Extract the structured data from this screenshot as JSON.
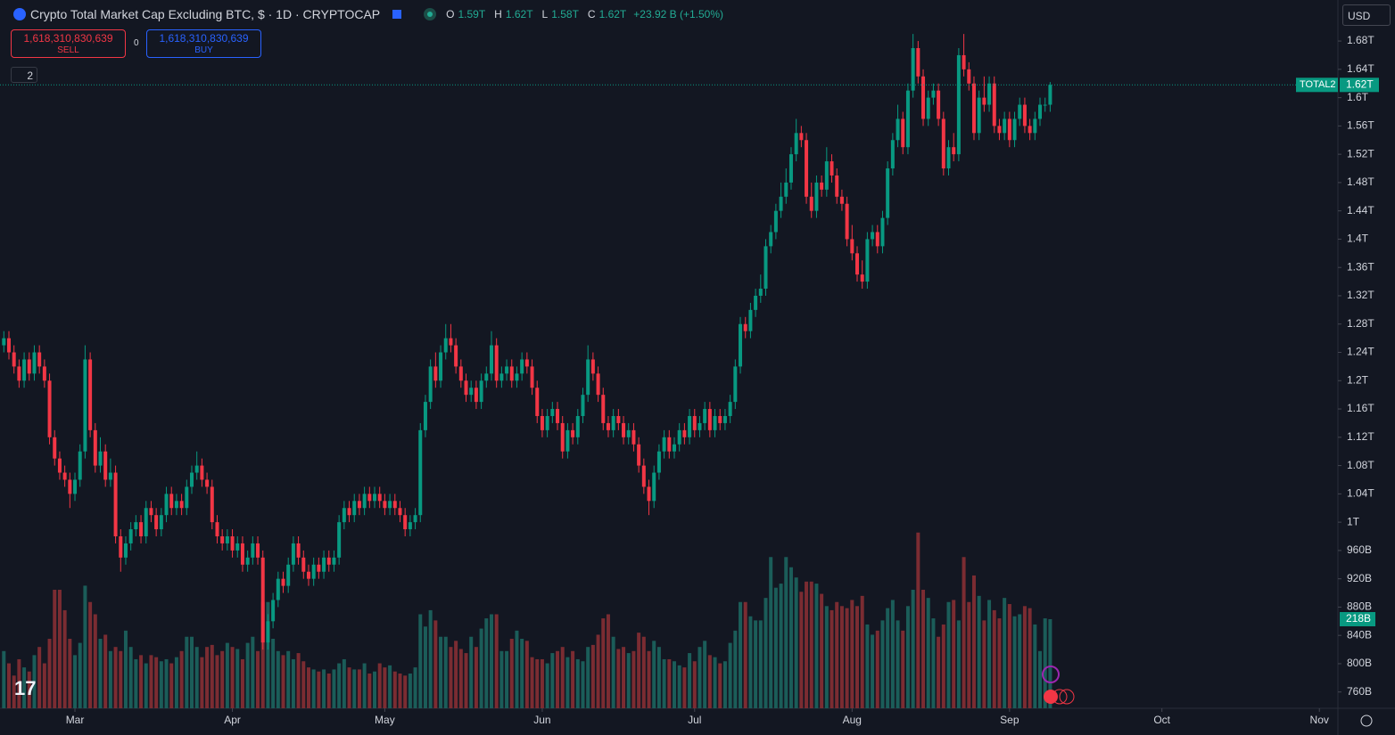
{
  "header": {
    "title": "Crypto Total Market Cap Excluding BTC, $ · 1D · CRYPTOCAP",
    "open_label": "O",
    "open": "1.59T",
    "high_label": "H",
    "high": "1.62T",
    "low_label": "L",
    "low": "1.58T",
    "close_label": "C",
    "close": "1.62T",
    "change": "+23.92 B (+1.50%)"
  },
  "trade": {
    "sell_price": "1,618,310,830,639",
    "sell_label": "SELL",
    "spread": "0",
    "buy_price": "1,618,310,830,639",
    "buy_label": "BUY"
  },
  "indicators_count": "2",
  "currency": "USD",
  "chart_data": {
    "type": "candlestick",
    "x": [
      0,
      1,
      2,
      3,
      4,
      5,
      6,
      7,
      8,
      9,
      10,
      11,
      12,
      13,
      14,
      15,
      16,
      17,
      18,
      19,
      20,
      21,
      22,
      23,
      24,
      25,
      26,
      27,
      28,
      29,
      30,
      31,
      32,
      33,
      34,
      35,
      36,
      37,
      38,
      39,
      40,
      41,
      42,
      43,
      44,
      45,
      46,
      47,
      48,
      49,
      50,
      51,
      52,
      53,
      54,
      55,
      56,
      57,
      58,
      59,
      60,
      61,
      62,
      63,
      64,
      65,
      66,
      67,
      68,
      69,
      70,
      71,
      72,
      73,
      74,
      75,
      76,
      77,
      78,
      79,
      80,
      81,
      82,
      83,
      84,
      85,
      86,
      87,
      88,
      89,
      90,
      91,
      92,
      93,
      94,
      95,
      96,
      97,
      98,
      99,
      100,
      101,
      102,
      103,
      104,
      105,
      106,
      107,
      108,
      109,
      110,
      111,
      112,
      113,
      114,
      115,
      116,
      117,
      118,
      119,
      120,
      121,
      122,
      123,
      124,
      125,
      126,
      127,
      128,
      129,
      130,
      131,
      132,
      133,
      134,
      135,
      136,
      137,
      138,
      139,
      140,
      141,
      142,
      143,
      144,
      145,
      146,
      147,
      148,
      149,
      150,
      151,
      152,
      153,
      154,
      155,
      156,
      157,
      158,
      159,
      160,
      161,
      162,
      163,
      164,
      165,
      166,
      167,
      168,
      169,
      170,
      171,
      172,
      173,
      174,
      175,
      176,
      177,
      178,
      179,
      180,
      181,
      182,
      183,
      184,
      185,
      186,
      187,
      188,
      189,
      190,
      191,
      192,
      193,
      194,
      195,
      196,
      197,
      198,
      199,
      200,
      201,
      202,
      203,
      204,
      205,
      206
    ],
    "open": [
      1.25,
      1.26,
      1.24,
      1.22,
      1.2,
      1.23,
      1.21,
      1.24,
      1.22,
      1.2,
      1.12,
      1.09,
      1.07,
      1.06,
      1.04,
      1.06,
      1.1,
      1.23,
      1.13,
      1.08,
      1.1,
      1.06,
      1.07,
      0.98,
      0.95,
      0.97,
      0.99,
      1.0,
      0.98,
      1.02,
      1.01,
      0.99,
      1.01,
      1.04,
      1.02,
      1.03,
      1.02,
      1.05,
      1.07,
      1.08,
      1.06,
      1.05,
      1.0,
      0.98,
      0.97,
      0.98,
      0.96,
      0.97,
      0.94,
      0.95,
      0.97,
      0.95,
      0.83,
      0.86,
      0.89,
      0.92,
      0.91,
      0.94,
      0.97,
      0.95,
      0.93,
      0.92,
      0.94,
      0.93,
      0.95,
      0.94,
      0.95,
      1.0,
      1.02,
      1.01,
      1.03,
      1.02,
      1.04,
      1.03,
      1.04,
      1.03,
      1.02,
      1.03,
      1.02,
      1.01,
      0.99,
      1.0,
      1.01,
      1.13,
      1.17,
      1.22,
      1.2,
      1.24,
      1.26,
      1.25,
      1.22,
      1.2,
      1.18,
      1.19,
      1.17,
      1.2,
      1.21,
      1.25,
      1.2,
      1.21,
      1.22,
      1.2,
      1.21,
      1.23,
      1.22,
      1.19,
      1.15,
      1.13,
      1.15,
      1.16,
      1.14,
      1.1,
      1.13,
      1.12,
      1.15,
      1.18,
      1.23,
      1.21,
      1.18,
      1.14,
      1.13,
      1.15,
      1.14,
      1.12,
      1.13,
      1.11,
      1.08,
      1.05,
      1.03,
      1.07,
      1.1,
      1.12,
      1.1,
      1.11,
      1.13,
      1.12,
      1.15,
      1.13,
      1.14,
      1.16,
      1.13,
      1.15,
      1.14,
      1.15,
      1.17,
      1.22,
      1.28,
      1.27,
      1.3,
      1.32,
      1.33,
      1.39,
      1.41,
      1.44,
      1.46,
      1.48,
      1.52,
      1.55,
      1.54,
      1.46,
      1.44,
      1.48,
      1.47,
      1.51,
      1.49,
      1.46,
      1.45,
      1.4,
      1.38,
      1.35,
      1.34,
      1.4,
      1.41,
      1.39,
      1.43,
      1.5,
      1.54,
      1.57,
      1.53,
      1.61,
      1.67,
      1.63,
      1.57,
      1.6,
      1.61,
      1.57,
      1.5,
      1.53,
      1.52,
      1.66,
      1.64,
      1.62,
      1.55,
      1.6,
      1.59,
      1.62,
      1.56,
      1.55,
      1.57,
      1.54,
      1.57,
      1.59,
      1.56,
      1.55,
      1.57,
      1.59,
      1.59
    ],
    "high": [
      1.27,
      1.27,
      1.25,
      1.23,
      1.24,
      1.24,
      1.25,
      1.25,
      1.23,
      1.21,
      1.13,
      1.1,
      1.08,
      1.07,
      1.07,
      1.11,
      1.25,
      1.24,
      1.14,
      1.12,
      1.11,
      1.09,
      1.08,
      0.99,
      0.98,
      1.0,
      1.01,
      1.01,
      1.03,
      1.03,
      1.02,
      1.02,
      1.05,
      1.05,
      1.04,
      1.04,
      1.06,
      1.08,
      1.1,
      1.09,
      1.07,
      1.06,
      1.01,
      0.99,
      0.99,
      0.99,
      0.98,
      0.98,
      0.96,
      0.98,
      0.98,
      0.96,
      0.87,
      0.9,
      0.93,
      0.93,
      0.95,
      0.98,
      0.98,
      0.96,
      0.94,
      0.95,
      0.95,
      0.96,
      0.96,
      0.96,
      1.01,
      1.03,
      1.03,
      1.04,
      1.04,
      1.05,
      1.05,
      1.05,
      1.05,
      1.04,
      1.04,
      1.04,
      1.03,
      1.02,
      1.01,
      1.02,
      1.14,
      1.18,
      1.23,
      1.24,
      1.25,
      1.28,
      1.28,
      1.26,
      1.23,
      1.21,
      1.2,
      1.2,
      1.21,
      1.22,
      1.27,
      1.26,
      1.22,
      1.23,
      1.23,
      1.22,
      1.24,
      1.24,
      1.23,
      1.2,
      1.16,
      1.16,
      1.17,
      1.17,
      1.15,
      1.14,
      1.14,
      1.16,
      1.19,
      1.25,
      1.24,
      1.22,
      1.19,
      1.15,
      1.16,
      1.16,
      1.15,
      1.14,
      1.14,
      1.12,
      1.09,
      1.06,
      1.08,
      1.11,
      1.13,
      1.13,
      1.12,
      1.14,
      1.14,
      1.16,
      1.16,
      1.15,
      1.17,
      1.17,
      1.16,
      1.16,
      1.16,
      1.18,
      1.23,
      1.29,
      1.29,
      1.31,
      1.33,
      1.35,
      1.4,
      1.42,
      1.45,
      1.48,
      1.5,
      1.53,
      1.57,
      1.56,
      1.55,
      1.48,
      1.49,
      1.49,
      1.53,
      1.52,
      1.5,
      1.47,
      1.46,
      1.42,
      1.39,
      1.37,
      1.41,
      1.42,
      1.42,
      1.44,
      1.51,
      1.55,
      1.59,
      1.58,
      1.62,
      1.69,
      1.68,
      1.64,
      1.61,
      1.62,
      1.62,
      1.58,
      1.54,
      1.55,
      1.67,
      1.69,
      1.65,
      1.63,
      1.61,
      1.63,
      1.63,
      1.63,
      1.57,
      1.58,
      1.58,
      1.58,
      1.6,
      1.6,
      1.57,
      1.58,
      1.6,
      1.6,
      1.622
    ],
    "low": [
      1.24,
      1.23,
      1.21,
      1.19,
      1.19,
      1.2,
      1.2,
      1.21,
      1.19,
      1.11,
      1.08,
      1.06,
      1.05,
      1.02,
      1.03,
      1.05,
      1.09,
      1.12,
      1.07,
      1.07,
      1.05,
      1.05,
      0.97,
      0.93,
      0.94,
      0.96,
      0.98,
      0.97,
      0.97,
      1.0,
      0.98,
      0.98,
      1.0,
      1.01,
      1.01,
      1.01,
      1.01,
      1.04,
      1.06,
      1.05,
      1.04,
      0.99,
      0.97,
      0.96,
      0.96,
      0.95,
      0.95,
      0.93,
      0.93,
      0.94,
      0.94,
      0.82,
      0.82,
      0.85,
      0.88,
      0.9,
      0.9,
      0.93,
      0.94,
      0.92,
      0.91,
      0.91,
      0.92,
      0.92,
      0.93,
      0.93,
      0.94,
      0.99,
      1.0,
      1.0,
      1.01,
      1.01,
      1.02,
      1.02,
      1.02,
      1.01,
      1.01,
      1.01,
      1.0,
      0.98,
      0.98,
      0.99,
      1.0,
      1.12,
      1.16,
      1.19,
      1.19,
      1.23,
      1.24,
      1.21,
      1.19,
      1.17,
      1.17,
      1.16,
      1.16,
      1.19,
      1.2,
      1.19,
      1.19,
      1.2,
      1.19,
      1.19,
      1.2,
      1.21,
      1.18,
      1.14,
      1.12,
      1.12,
      1.14,
      1.13,
      1.09,
      1.09,
      1.11,
      1.11,
      1.14,
      1.17,
      1.2,
      1.17,
      1.13,
      1.12,
      1.12,
      1.13,
      1.11,
      1.11,
      1.1,
      1.07,
      1.04,
      1.01,
      1.02,
      1.06,
      1.09,
      1.09,
      1.09,
      1.1,
      1.11,
      1.11,
      1.12,
      1.12,
      1.13,
      1.12,
      1.12,
      1.13,
      1.13,
      1.14,
      1.16,
      1.21,
      1.26,
      1.26,
      1.29,
      1.31,
      1.32,
      1.38,
      1.4,
      1.43,
      1.45,
      1.47,
      1.51,
      1.53,
      1.45,
      1.43,
      1.43,
      1.46,
      1.46,
      1.48,
      1.45,
      1.44,
      1.39,
      1.37,
      1.34,
      1.33,
      1.33,
      1.39,
      1.38,
      1.38,
      1.42,
      1.49,
      1.53,
      1.52,
      1.52,
      1.6,
      1.62,
      1.56,
      1.56,
      1.59,
      1.56,
      1.49,
      1.49,
      1.51,
      1.51,
      1.63,
      1.61,
      1.54,
      1.54,
      1.58,
      1.58,
      1.55,
      1.54,
      1.54,
      1.53,
      1.53,
      1.56,
      1.55,
      1.54,
      1.54,
      1.56,
      1.58,
      1.58
    ],
    "close": [
      1.26,
      1.24,
      1.22,
      1.2,
      1.23,
      1.21,
      1.24,
      1.22,
      1.2,
      1.12,
      1.09,
      1.07,
      1.06,
      1.04,
      1.06,
      1.1,
      1.23,
      1.13,
      1.08,
      1.1,
      1.06,
      1.07,
      0.98,
      0.95,
      0.97,
      0.99,
      1.0,
      0.98,
      1.02,
      1.01,
      0.99,
      1.01,
      1.04,
      1.02,
      1.03,
      1.02,
      1.05,
      1.07,
      1.08,
      1.06,
      1.05,
      1.0,
      0.98,
      0.97,
      0.98,
      0.96,
      0.97,
      0.94,
      0.95,
      0.97,
      0.95,
      0.83,
      0.86,
      0.89,
      0.92,
      0.91,
      0.94,
      0.97,
      0.95,
      0.93,
      0.92,
      0.94,
      0.93,
      0.95,
      0.94,
      0.95,
      1.0,
      1.02,
      1.01,
      1.03,
      1.02,
      1.04,
      1.03,
      1.04,
      1.03,
      1.02,
      1.03,
      1.02,
      1.01,
      0.99,
      1.0,
      1.01,
      1.13,
      1.17,
      1.22,
      1.2,
      1.24,
      1.26,
      1.25,
      1.22,
      1.2,
      1.18,
      1.19,
      1.17,
      1.2,
      1.21,
      1.25,
      1.2,
      1.21,
      1.22,
      1.2,
      1.21,
      1.23,
      1.22,
      1.19,
      1.15,
      1.13,
      1.15,
      1.16,
      1.14,
      1.1,
      1.13,
      1.12,
      1.15,
      1.18,
      1.23,
      1.21,
      1.18,
      1.14,
      1.13,
      1.15,
      1.14,
      1.12,
      1.13,
      1.11,
      1.08,
      1.05,
      1.03,
      1.07,
      1.1,
      1.12,
      1.1,
      1.11,
      1.13,
      1.12,
      1.15,
      1.13,
      1.14,
      1.16,
      1.13,
      1.15,
      1.14,
      1.15,
      1.17,
      1.22,
      1.28,
      1.27,
      1.3,
      1.32,
      1.33,
      1.39,
      1.41,
      1.44,
      1.46,
      1.48,
      1.52,
      1.55,
      1.54,
      1.46,
      1.44,
      1.48,
      1.47,
      1.51,
      1.49,
      1.46,
      1.45,
      1.4,
      1.38,
      1.35,
      1.34,
      1.4,
      1.41,
      1.39,
      1.43,
      1.5,
      1.54,
      1.57,
      1.53,
      1.61,
      1.67,
      1.63,
      1.57,
      1.6,
      1.61,
      1.57,
      1.5,
      1.53,
      1.52,
      1.66,
      1.64,
      1.62,
      1.55,
      1.6,
      1.59,
      1.62,
      1.56,
      1.55,
      1.57,
      1.54,
      1.57,
      1.59,
      1.56,
      1.55,
      1.57,
      1.59,
      1.59,
      1.618
    ],
    "volume": [
      140,
      110,
      80,
      120,
      100,
      90,
      130,
      150,
      110,
      170,
      290,
      290,
      240,
      170,
      130,
      160,
      300,
      260,
      230,
      170,
      180,
      140,
      150,
      140,
      190,
      150,
      120,
      130,
      110,
      130,
      125,
      115,
      120,
      110,
      125,
      140,
      175,
      175,
      150,
      125,
      150,
      155,
      130,
      140,
      160,
      150,
      145,
      120,
      160,
      175,
      140,
      260,
      260,
      170,
      140,
      130,
      140,
      120,
      135,
      115,
      100,
      95,
      90,
      95,
      85,
      95,
      110,
      120,
      100,
      95,
      95,
      110,
      85,
      90,
      110,
      100,
      105,
      90,
      85,
      80,
      85,
      100,
      230,
      200,
      240,
      215,
      175,
      175,
      150,
      165,
      145,
      135,
      175,
      150,
      195,
      220,
      230,
      230,
      140,
      140,
      170,
      190,
      170,
      165,
      125,
      120,
      120,
      110,
      135,
      140,
      150,
      125,
      140,
      120,
      115,
      150,
      155,
      180,
      220,
      230,
      175,
      145,
      150,
      135,
      140,
      185,
      175,
      140,
      165,
      150,
      120,
      120,
      115,
      105,
      100,
      135,
      115,
      150,
      165,
      130,
      125,
      110,
      115,
      160,
      190,
      260,
      260,
      225,
      215,
      215,
      270,
      370,
      295,
      305,
      370,
      345,
      320,
      285,
      310,
      310,
      305,
      280,
      250,
      240,
      260,
      250,
      245,
      265,
      250,
      275,
      205,
      180,
      190,
      215,
      245,
      265,
      215,
      190,
      250,
      290,
      430,
      290,
      270,
      220,
      175,
      205,
      260,
      265,
      215,
      370,
      260,
      325,
      275,
      215,
      265,
      240,
      220,
      270,
      255,
      225,
      230,
      250,
      245,
      205,
      140,
      220,
      218
    ],
    "xlim": [
      -0.755,
      262.65
    ],
    "xticks": [
      {
        "value": 14,
        "label": "Mar"
      },
      {
        "value": 45,
        "label": "Apr"
      },
      {
        "value": 75,
        "label": "May"
      },
      {
        "value": 106,
        "label": "Jun"
      },
      {
        "value": 136,
        "label": "Jul"
      },
      {
        "value": 167,
        "label": "Aug"
      },
      {
        "value": 198,
        "label": "Sep"
      },
      {
        "value": 228,
        "label": "Oct"
      },
      {
        "value": 259,
        "label": "Nov"
      }
    ],
    "ylim": [
      0.737,
      1.738
    ],
    "yticks": [
      {
        "value": 1.68,
        "label": "1.68T"
      },
      {
        "value": 1.64,
        "label": "1.64T"
      },
      {
        "value": 1.6,
        "label": "1.6T"
      },
      {
        "value": 1.56,
        "label": "1.56T"
      },
      {
        "value": 1.52,
        "label": "1.52T"
      },
      {
        "value": 1.48,
        "label": "1.48T"
      },
      {
        "value": 1.44,
        "label": "1.44T"
      },
      {
        "value": 1.4,
        "label": "1.4T"
      },
      {
        "value": 1.36,
        "label": "1.36T"
      },
      {
        "value": 1.32,
        "label": "1.32T"
      },
      {
        "value": 1.28,
        "label": "1.28T"
      },
      {
        "value": 1.24,
        "label": "1.24T"
      },
      {
        "value": 1.2,
        "label": "1.2T"
      },
      {
        "value": 1.16,
        "label": "1.16T"
      },
      {
        "value": 1.12,
        "label": "1.12T"
      },
      {
        "value": 1.08,
        "label": "1.08T"
      },
      {
        "value": 1.04,
        "label": "1.04T"
      },
      {
        "value": 1,
        "label": "1T"
      },
      {
        "value": 0.96,
        "label": "960B"
      },
      {
        "value": 0.92,
        "label": "920B"
      },
      {
        "value": 0.88,
        "label": "880B"
      },
      {
        "value": 0.84,
        "label": "840B"
      },
      {
        "value": 0.8,
        "label": "800B"
      },
      {
        "value": 0.76,
        "label": "760B"
      }
    ],
    "volume_ylim": [
      0,
      436
    ],
    "up_color": "#089981",
    "down_color": "#f23645",
    "volume_up_color": "#1b5d59",
    "volume_down_color": "#7b2c32",
    "price_line_label": "TOTAL2",
    "last_price_label": "1.62T",
    "last_volume_label": "218B"
  }
}
